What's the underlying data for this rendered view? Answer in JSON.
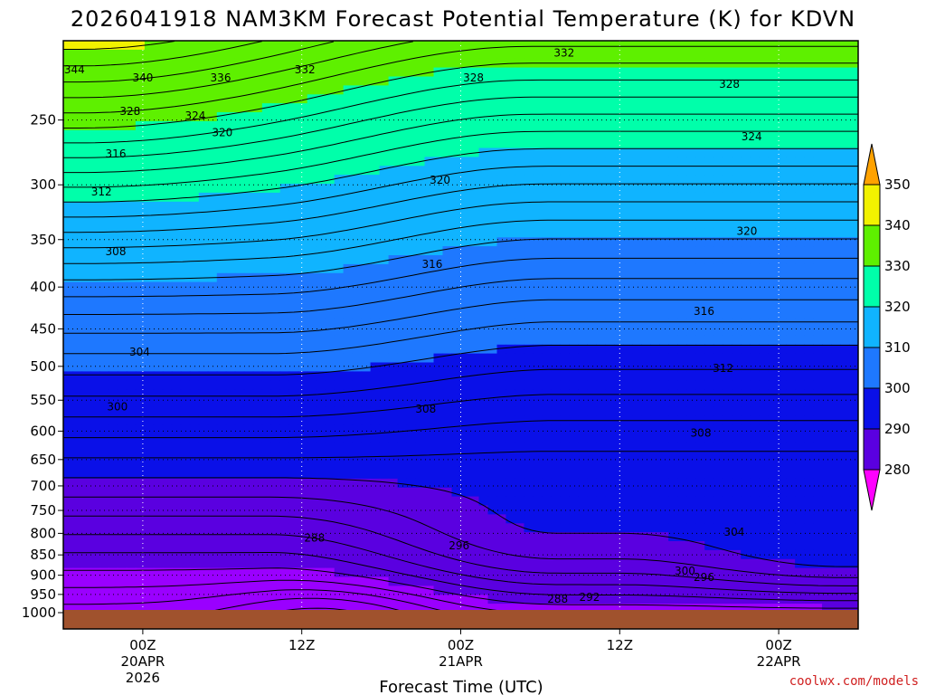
{
  "chart_data": {
    "type": "heatmap",
    "title": "2026041918 NAM3KM Forecast Potential Temperature (K) for KDVN",
    "xlabel": "Forecast Time (UTC)",
    "ylabel": "",
    "y_axis": {
      "ticks": [
        250,
        300,
        350,
        400,
        450,
        500,
        550,
        600,
        650,
        700,
        750,
        800,
        850,
        900,
        950,
        1000
      ],
      "range": [
        200,
        1000
      ],
      "scale": "log-pressure"
    },
    "x_axis": {
      "range_hours": [
        -5,
        45
      ],
      "ticks": [
        {
          "hour": 0,
          "line1": "00Z",
          "line2": "20APR",
          "line3": "2026"
        },
        {
          "hour": 10,
          "line1": "12Z",
          "line2": "",
          "line3": ""
        },
        {
          "hour": 20,
          "line1": "00Z",
          "line2": "21APR",
          "line3": ""
        },
        {
          "hour": 30,
          "line1": "12Z",
          "line2": "",
          "line3": ""
        },
        {
          "hour": 40,
          "line1": "00Z",
          "line2": "22APR",
          "line3": ""
        }
      ]
    },
    "colorbar": {
      "levels": [
        280,
        290,
        300,
        310,
        320,
        330,
        340,
        350
      ],
      "colors": [
        "#9a00ff",
        "#5a00e0",
        "#0a10e8",
        "#1e78ff",
        "#10b4ff",
        "#00ffaa",
        "#5ef000",
        "#f2f200",
        "#ffa200"
      ],
      "under_color": "#ff00ff",
      "over_color": "#ffa200"
    },
    "contour_labels": [
      {
        "text": "332",
        "t": 26.5,
        "p": 207
      },
      {
        "text": "344",
        "t": -4.3,
        "p": 217
      },
      {
        "text": "340",
        "t": 0.0,
        "p": 222
      },
      {
        "text": "336",
        "t": 4.9,
        "p": 222
      },
      {
        "text": "332",
        "t": 10.2,
        "p": 217
      },
      {
        "text": "328",
        "t": 20.8,
        "p": 222
      },
      {
        "text": "328",
        "t": 36.9,
        "p": 226
      },
      {
        "text": "328",
        "t": -0.8,
        "p": 244
      },
      {
        "text": "324",
        "t": 3.3,
        "p": 247
      },
      {
        "text": "320",
        "t": 5.0,
        "p": 259
      },
      {
        "text": "324",
        "t": 38.3,
        "p": 262
      },
      {
        "text": "316",
        "t": -1.7,
        "p": 275
      },
      {
        "text": "312",
        "t": -2.6,
        "p": 306
      },
      {
        "text": "320",
        "t": 18.7,
        "p": 296
      },
      {
        "text": "320",
        "t": 38.0,
        "p": 342
      },
      {
        "text": "308",
        "t": -1.7,
        "p": 362
      },
      {
        "text": "316",
        "t": 18.2,
        "p": 375
      },
      {
        "text": "316",
        "t": 35.3,
        "p": 428
      },
      {
        "text": "304",
        "t": -0.2,
        "p": 480
      },
      {
        "text": "312",
        "t": 36.5,
        "p": 503
      },
      {
        "text": "300",
        "t": -1.6,
        "p": 560
      },
      {
        "text": "308",
        "t": 17.8,
        "p": 564
      },
      {
        "text": "308",
        "t": 35.1,
        "p": 603
      },
      {
        "text": "288",
        "t": 10.8,
        "p": 810
      },
      {
        "text": "296",
        "t": 19.9,
        "p": 828
      },
      {
        "text": "304",
        "t": 37.2,
        "p": 797
      },
      {
        "text": "300",
        "t": 34.1,
        "p": 890
      },
      {
        "text": "296",
        "t": 35.3,
        "p": 905
      },
      {
        "text": "288",
        "t": 26.1,
        "p": 963
      },
      {
        "text": "292",
        "t": 28.1,
        "p": 958
      }
    ]
  },
  "credit": "coolwx.com/models"
}
